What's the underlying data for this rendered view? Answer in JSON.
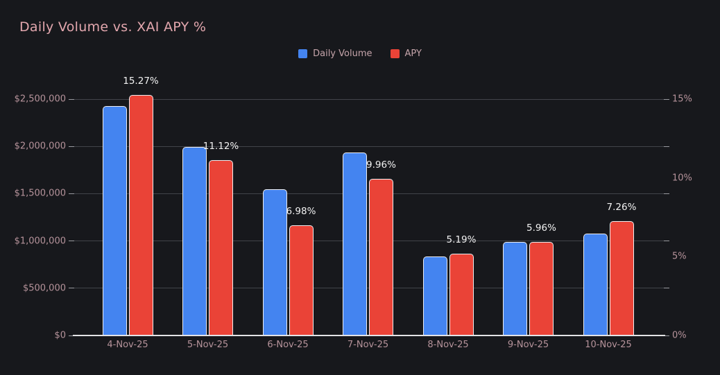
{
  "title": "Daily Volume vs. XAI APY %",
  "legend": [
    {
      "label": "Daily Volume",
      "color": "#4484f0"
    },
    {
      "label": "APY",
      "color": "#ea4337"
    }
  ],
  "chart_data": {
    "type": "bar",
    "title": "Daily Volume vs. XAI APY %",
    "categories": [
      "4-Nov-25",
      "5-Nov-25",
      "6-Nov-25",
      "7-Nov-25",
      "8-Nov-25",
      "9-Nov-25",
      "10-Nov-25"
    ],
    "series": [
      {
        "name": "Daily Volume",
        "axis": "left",
        "color": "#4484f0",
        "values": [
          2425000,
          1995000,
          1545000,
          1935000,
          835000,
          990000,
          1075000
        ]
      },
      {
        "name": "APY",
        "axis": "right",
        "color": "#ea4337",
        "values": [
          15.27,
          11.12,
          6.98,
          9.96,
          5.19,
          5.96,
          7.26
        ],
        "data_labels": [
          "15.27%",
          "11.12%",
          "6.98%",
          "9.96%",
          "5.19%",
          "5.96%",
          "7.26%"
        ]
      }
    ],
    "left_axis": {
      "min": 0,
      "max": 2500000,
      "ticks": [
        "$0",
        "$500,000",
        "$1,000,000",
        "$1,500,000",
        "$2,000,000",
        "$2,500,000"
      ]
    },
    "right_axis": {
      "min": 0,
      "max": 15,
      "ticks": [
        "0%",
        "5%",
        "10%",
        "15%"
      ]
    },
    "grid": true,
    "legend_position": "top"
  },
  "colors": {
    "background": "#17181c",
    "title": "#e3a7ae",
    "axis_label": "#b6939b",
    "data_label": "#f2f2f2",
    "grid": "#42444a",
    "axis_line": "#e3e3e6",
    "tick": "#9a9ba0",
    "bar_border": "#eeeef0"
  }
}
